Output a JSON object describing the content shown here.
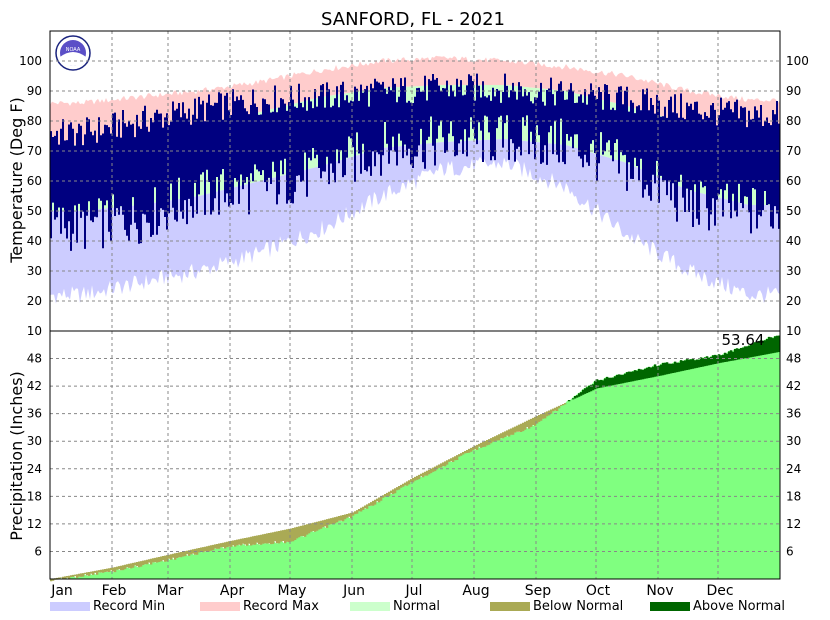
{
  "title": "SANFORD, FL - 2021",
  "colors": {
    "record_min": "#ccccff",
    "record_max": "#ffcccc",
    "normal": "#ccffcc",
    "observed": "#000080",
    "below_normal": "#aaaa55",
    "above_normal": "#006600",
    "observed_precip": "#80ff80"
  },
  "logo": {
    "text": "NOAA"
  },
  "chart_data": [
    {
      "type": "area",
      "ylabel": "Temperature (Deg F)",
      "ylim": [
        10,
        110
      ],
      "yticks": [
        "20",
        "30",
        "40",
        "50",
        "60",
        "70",
        "80",
        "90",
        "100"
      ],
      "months": [
        "Jan",
        "Feb",
        "Mar",
        "Apr",
        "May",
        "Jun",
        "Jul",
        "Aug",
        "Sep",
        "Oct",
        "Nov",
        "Dec"
      ],
      "grid": true,
      "series_monthly": {
        "record_max": [
          86,
          88,
          90,
          93,
          97,
          100,
          101,
          100,
          98,
          95,
          90,
          87
        ],
        "normal_high": [
          72,
          74,
          78,
          83,
          88,
          91,
          92,
          92,
          90,
          85,
          79,
          74
        ],
        "normal_low": [
          50,
          52,
          55,
          60,
          65,
          71,
          73,
          74,
          72,
          66,
          57,
          52
        ],
        "record_min": [
          22,
          26,
          30,
          36,
          44,
          55,
          64,
          66,
          58,
          42,
          30,
          22
        ]
      },
      "observed_daily_range_monthly": {
        "high": [
          76,
          80,
          84,
          87,
          88,
          90,
          91,
          91,
          89,
          87,
          84,
          82
        ],
        "low": [
          45,
          48,
          55,
          58,
          63,
          71,
          73,
          74,
          72,
          64,
          52,
          50
        ]
      }
    },
    {
      "type": "area",
      "ylabel": "Precipitation (Inches)",
      "ylim": [
        0,
        54
      ],
      "yticks": [
        "6",
        "12",
        "18",
        "24",
        "30",
        "36",
        "42",
        "48"
      ],
      "top_tick_label": "10",
      "annotation": "53.64",
      "grid": true,
      "cumulative_observed_monthly": [
        0,
        2.0,
        4.5,
        7.5,
        8.5,
        14.0,
        21.5,
        28.5,
        34.0,
        43.5,
        47.0,
        49.0,
        53.64
      ],
      "cumulative_normal_monthly": [
        0,
        2.5,
        5.3,
        8.3,
        11.0,
        14.5,
        22.0,
        29.0,
        35.5,
        41.5,
        44.2,
        47.0,
        49.5
      ]
    }
  ],
  "legend": [
    {
      "label": "Record Min",
      "color_key": "record_min"
    },
    {
      "label": "Record Max",
      "color_key": "record_max"
    },
    {
      "label": "Normal",
      "color_key": "normal"
    },
    {
      "label": "Below Normal",
      "color_key": "below_normal"
    },
    {
      "label": "Above Normal",
      "color_key": "above_normal"
    }
  ]
}
